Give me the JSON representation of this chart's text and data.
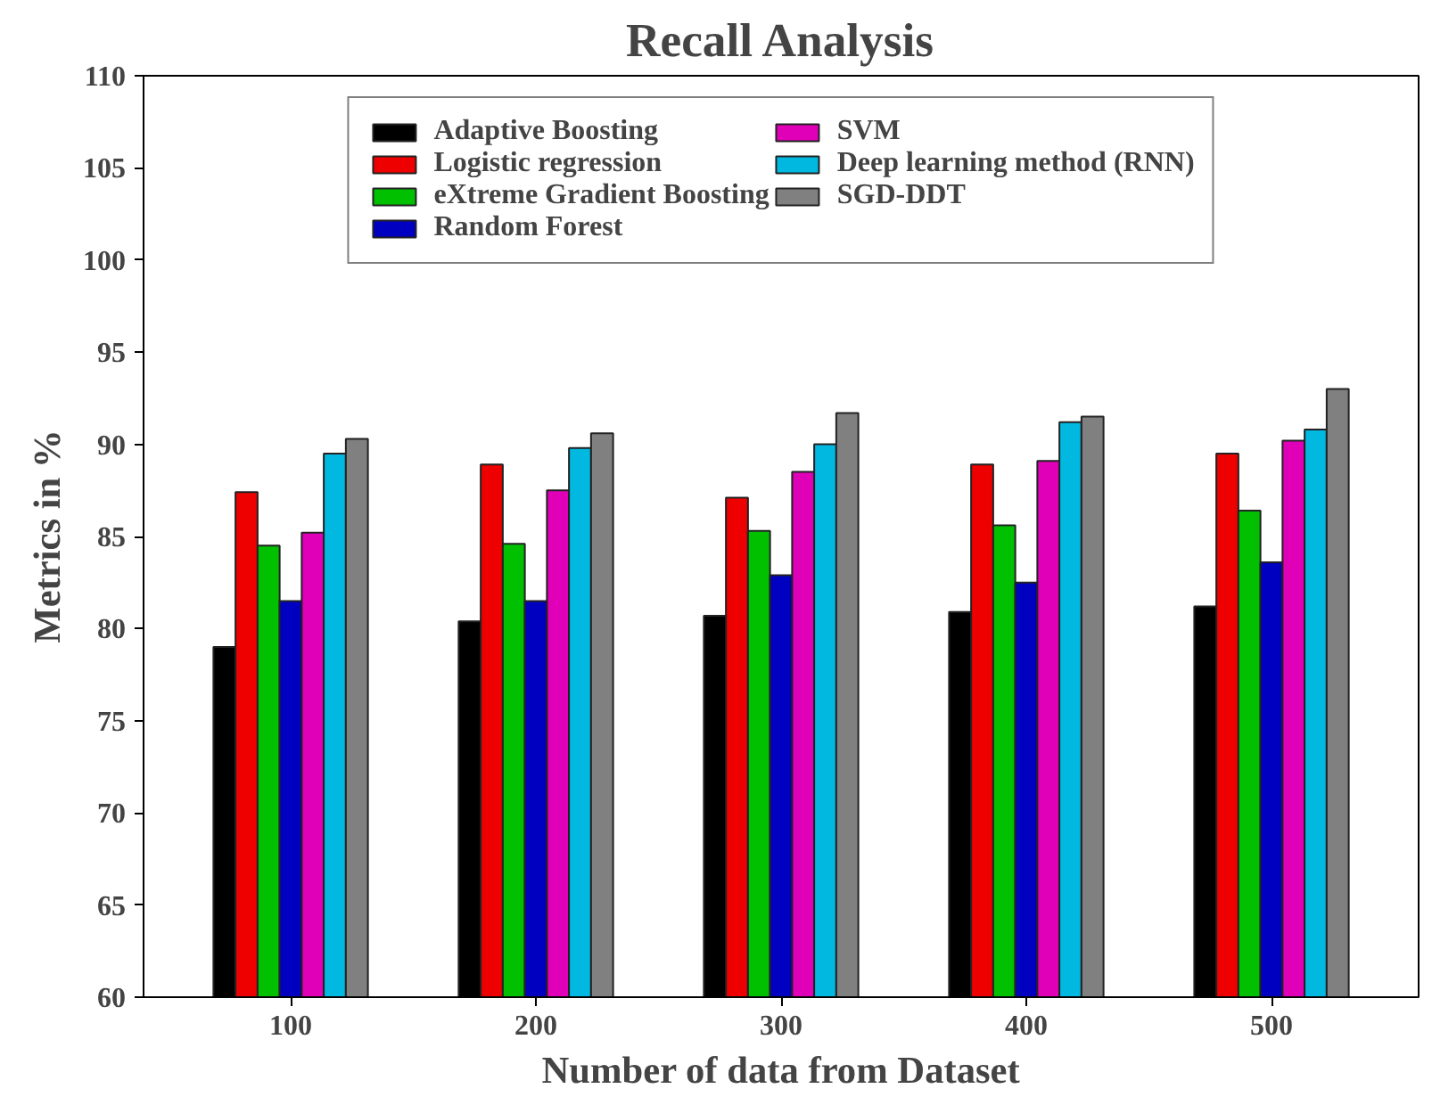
{
  "chart_data": {
    "type": "bar",
    "title": "Recall Analysis",
    "xlabel": "Number of data from Dataset",
    "ylabel": "Metrics in %",
    "categories": [
      "100",
      "200",
      "300",
      "400",
      "500"
    ],
    "series": [
      {
        "name": "Adaptive Boosting",
        "color": "#000000",
        "values": [
          79.0,
          80.4,
          80.7,
          80.9,
          81.2
        ]
      },
      {
        "name": "Logistic regression",
        "color": "#ee0000",
        "values": [
          87.4,
          88.9,
          87.1,
          88.9,
          89.5
        ]
      },
      {
        "name": "eXtreme Gradient Boosting",
        "color": "#00c000",
        "values": [
          84.5,
          84.6,
          85.3,
          85.6,
          86.4
        ]
      },
      {
        "name": "Random Forest",
        "color": "#0000c0",
        "values": [
          81.5,
          81.5,
          82.9,
          82.5,
          83.6
        ]
      },
      {
        "name": "SVM",
        "color": "#e000b8",
        "values": [
          85.2,
          87.5,
          88.5,
          89.1,
          90.2
        ]
      },
      {
        "name": "Deep learning method (RNN)",
        "color": "#00b8e0",
        "values": [
          89.5,
          89.8,
          90.0,
          91.2,
          90.8
        ]
      },
      {
        "name": "SGD-DDT",
        "color": "#808080",
        "values": [
          90.3,
          90.6,
          91.7,
          91.5,
          93.0
        ]
      }
    ],
    "ylim": [
      60,
      110
    ],
    "yticks": [
      60,
      65,
      70,
      75,
      80,
      85,
      90,
      95,
      100,
      105,
      110
    ],
    "grid": false,
    "legend": "top"
  }
}
